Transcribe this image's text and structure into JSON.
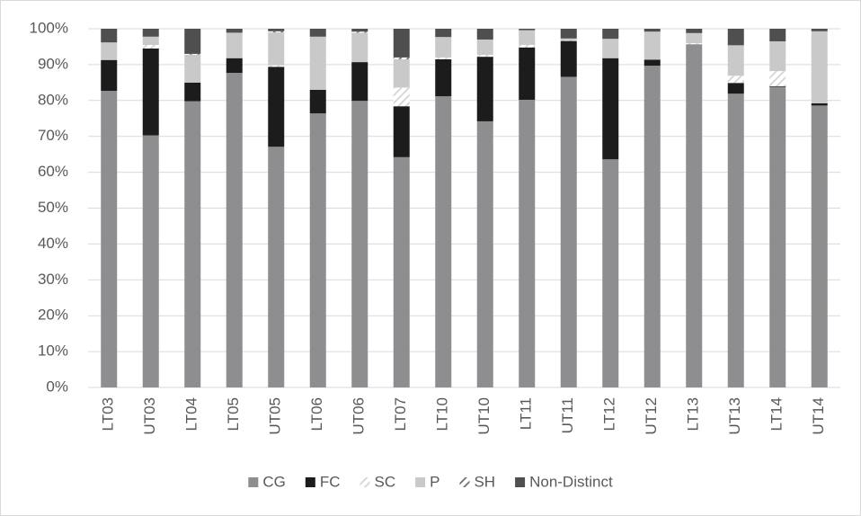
{
  "chart_data": {
    "type": "stacked_bar",
    "categories": [
      "LT03",
      "UT03",
      "LT04",
      "LT05",
      "UT05",
      "LT06",
      "UT06",
      "LT07",
      "LT10",
      "UT10",
      "LT11",
      "UT11",
      "LT12",
      "UT12",
      "LT13",
      "UT13",
      "LT14",
      "UT14"
    ],
    "series": [
      {
        "name": "CG",
        "color": "#8e8e90",
        "values": [
          82.7,
          70.3,
          79.8,
          87.7,
          67.1,
          76.4,
          79.9,
          64.2,
          81.2,
          74.2,
          80.2,
          86.6,
          63.6,
          89.7,
          95.7,
          81.9,
          83.8,
          78.6
        ]
      },
      {
        "name": "FC",
        "color": "#1c1c1c",
        "values": [
          8.6,
          24.2,
          5.2,
          4.1,
          22.3,
          6.6,
          10.8,
          14.2,
          10.3,
          18,
          14.6,
          10,
          28.2,
          1.7,
          0,
          3,
          0.2,
          0.6
        ]
      },
      {
        "name": "SC",
        "color": "#d4d4d4",
        "pattern": "hatch",
        "values": [
          0,
          1,
          0,
          0,
          0.4,
          0,
          0,
          5.2,
          0.5,
          0.5,
          0.7,
          0.2,
          0,
          0,
          0.3,
          2,
          4.2,
          0
        ]
      },
      {
        "name": "P",
        "color": "#c9c9c9",
        "values": [
          4.9,
          2.3,
          7.8,
          7.1,
          9.2,
          14.8,
          8.2,
          7.9,
          5.7,
          4.3,
          4.1,
          0.5,
          5.4,
          7.8,
          2.8,
          8.5,
          8.3,
          20.1
        ]
      },
      {
        "name": "SH",
        "color": "#6b6b6b",
        "pattern": "hatch",
        "values": [
          0,
          0,
          0.2,
          0,
          0.3,
          0,
          0.3,
          0.5,
          0,
          0,
          0,
          0,
          0,
          0,
          0,
          0,
          0,
          0
        ]
      },
      {
        "name": "Non-Distinct",
        "color": "#4f4f4f",
        "values": [
          3.8,
          2.2,
          7,
          1.1,
          0.7,
          2.2,
          0.8,
          8,
          2.3,
          3,
          0.4,
          2.7,
          2.8,
          0.8,
          1.2,
          4.6,
          3.5,
          0.7
        ]
      }
    ],
    "ylim": [
      0,
      100
    ],
    "yticks": [
      {
        "value": 0,
        "label": "0%"
      },
      {
        "value": 10,
        "label": "10%"
      },
      {
        "value": 20,
        "label": "20%"
      },
      {
        "value": 30,
        "label": "30%"
      },
      {
        "value": 40,
        "label": "40%"
      },
      {
        "value": 50,
        "label": "50%"
      },
      {
        "value": 60,
        "label": "60%"
      },
      {
        "value": 70,
        "label": "70%"
      },
      {
        "value": 80,
        "label": "80%"
      },
      {
        "value": 90,
        "label": "90%"
      },
      {
        "value": 100,
        "label": "100%"
      }
    ],
    "grid": true,
    "legend": "bottom"
  }
}
